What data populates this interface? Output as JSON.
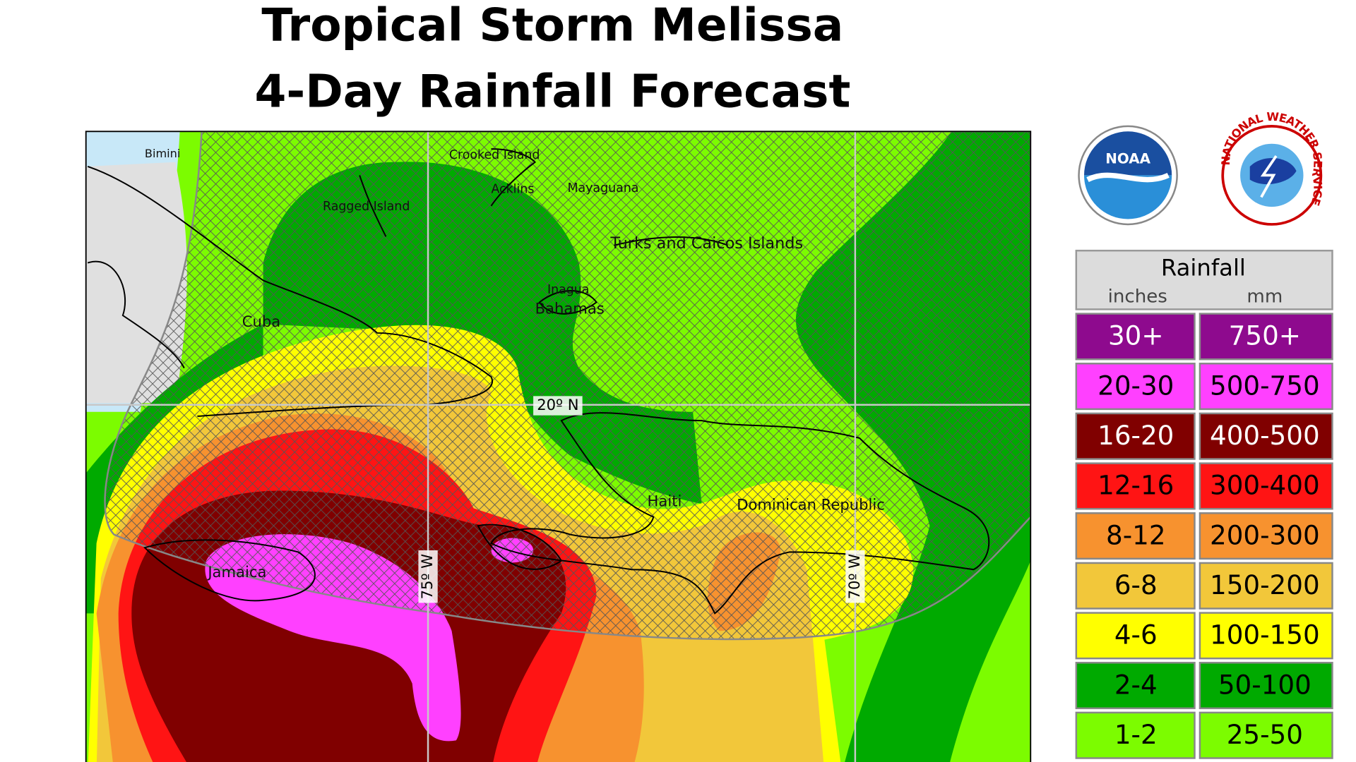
{
  "title": {
    "line1": "Tropical Storm Melissa",
    "line2": "4-Day Rainfall Forecast"
  },
  "map": {
    "places": [
      "Bimini",
      "Crooked Island",
      "Acklins",
      "Mayaguana",
      "Ragged Island",
      "Turks and Caicos Islands",
      "Inagua",
      "Bahamas",
      "Cuba",
      "Haiti",
      "Dominican Republic",
      "Jamaica"
    ],
    "grid_labels": [
      "20º N",
      "75º W",
      "70º W"
    ]
  },
  "logos": {
    "noaa": "NOAA",
    "nws": "NATIONAL WEATHER SERVICE"
  },
  "legend": {
    "title": "Rainfall",
    "units": [
      "inches",
      "mm"
    ],
    "rows": [
      {
        "inches": "30+",
        "mm": "750+",
        "color": "#8e0a8e"
      },
      {
        "inches": "20-30",
        "mm": "500-750",
        "color": "#ff40ff"
      },
      {
        "inches": "16-20",
        "mm": "400-500",
        "color": "#800000"
      },
      {
        "inches": "12-16",
        "mm": "300-400",
        "color": "#ff1414"
      },
      {
        "inches": "8-12",
        "mm": "200-300",
        "color": "#f7922f"
      },
      {
        "inches": "6-8",
        "mm": "150-200",
        "color": "#f2c73a"
      },
      {
        "inches": "4-6",
        "mm": "100-150",
        "color": "#ffff00"
      },
      {
        "inches": "2-4",
        "mm": "50-100",
        "color": "#00aa00"
      },
      {
        "inches": "1-2",
        "mm": "25-50",
        "color": "#7cfc00"
      }
    ]
  }
}
